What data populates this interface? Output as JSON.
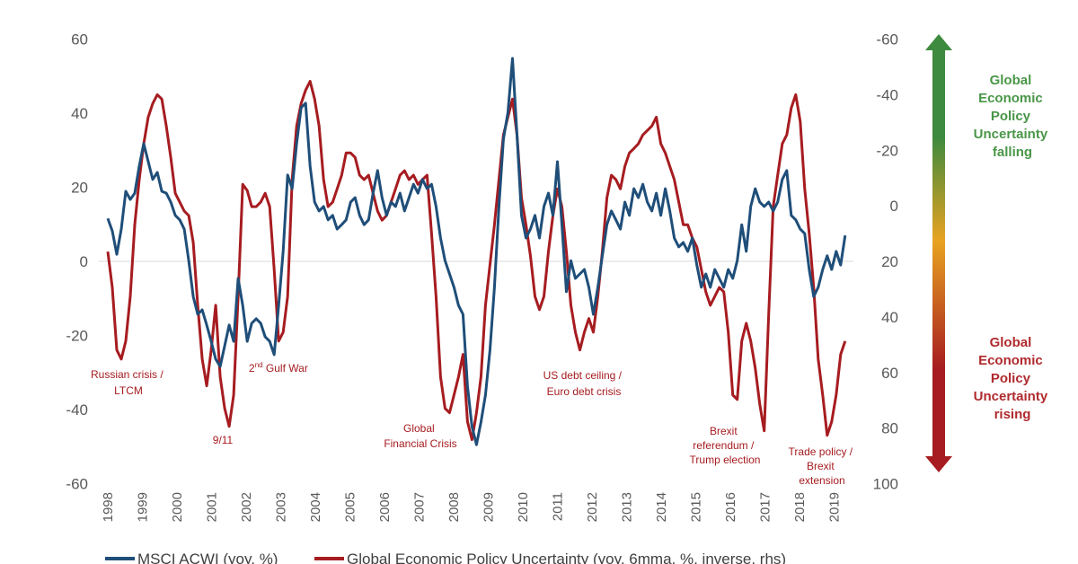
{
  "chart_data": {
    "type": "line",
    "xlim": [
      1998,
      2019.4
    ],
    "ylim_left": [
      -60,
      60
    ],
    "ylim_right": [
      -60,
      100
    ],
    "right_axis_inverted": true,
    "grid": false,
    "zero_line": true,
    "legend_position": "bottom",
    "x_ticks": [
      "1998",
      "1999",
      "2000",
      "2001",
      "2002",
      "2003",
      "2004",
      "2005",
      "2006",
      "2007",
      "2008",
      "2009",
      "2010",
      "2011",
      "2012",
      "2013",
      "2014",
      "2015",
      "2016",
      "2017",
      "2018",
      "2019"
    ],
    "y_ticks_left": [
      "60",
      "40",
      "20",
      "0",
      "-20",
      "-40",
      "-60"
    ],
    "y_ticks_right": [
      "-60",
      "-40",
      "-20",
      "0",
      "20",
      "40",
      "60",
      "80",
      "100"
    ],
    "x": [
      1998.0,
      1998.13,
      1998.26,
      1998.39,
      1998.52,
      1998.65,
      1998.78,
      1998.91,
      1999.04,
      1999.17,
      1999.3,
      1999.43,
      1999.56,
      1999.69,
      1999.82,
      1999.95,
      2000.08,
      2000.21,
      2000.34,
      2000.47,
      2000.6,
      2000.73,
      2000.86,
      2000.99,
      2001.12,
      2001.25,
      2001.38,
      2001.51,
      2001.64,
      2001.77,
      2001.9,
      2002.03,
      2002.16,
      2002.29,
      2002.42,
      2002.55,
      2002.68,
      2002.81,
      2002.94,
      2003.07,
      2003.2,
      2003.33,
      2003.46,
      2003.59,
      2003.72,
      2003.85,
      2003.98,
      2004.11,
      2004.24,
      2004.37,
      2004.5,
      2004.63,
      2004.76,
      2004.89,
      2005.02,
      2005.15,
      2005.28,
      2005.41,
      2005.54,
      2005.67,
      2005.8,
      2005.93,
      2006.06,
      2006.19,
      2006.32,
      2006.45,
      2006.58,
      2006.71,
      2006.84,
      2006.97,
      2007.1,
      2007.23,
      2007.36,
      2007.49,
      2007.62,
      2007.75,
      2007.88,
      2008.01,
      2008.14,
      2008.27,
      2008.4,
      2008.53,
      2008.66,
      2008.79,
      2008.92,
      2009.05,
      2009.18,
      2009.31,
      2009.44,
      2009.57,
      2009.7,
      2009.83,
      2009.96,
      2010.09,
      2010.22,
      2010.35,
      2010.48,
      2010.61,
      2010.74,
      2010.87,
      2011.0,
      2011.13,
      2011.26,
      2011.39,
      2011.52,
      2011.65,
      2011.78,
      2011.91,
      2012.04,
      2012.17,
      2012.3,
      2012.43,
      2012.56,
      2012.69,
      2012.82,
      2012.95,
      2013.08,
      2013.21,
      2013.34,
      2013.47,
      2013.6,
      2013.73,
      2013.86,
      2013.99,
      2014.12,
      2014.25,
      2014.38,
      2014.51,
      2014.64,
      2014.77,
      2014.9,
      2015.03,
      2015.16,
      2015.29,
      2015.42,
      2015.55,
      2015.68,
      2015.81,
      2015.94,
      2016.07,
      2016.2,
      2016.33,
      2016.46,
      2016.59,
      2016.72,
      2016.85,
      2016.98,
      2017.11,
      2017.24,
      2017.37,
      2017.5,
      2017.63,
      2017.76,
      2017.89,
      2018.02,
      2018.15,
      2018.28,
      2018.41,
      2018.54,
      2018.67,
      2018.8,
      2018.93,
      2019.06,
      2019.19,
      2019.32
    ],
    "series": [
      {
        "name": "MSCI ACWI (yoy, %)",
        "axis": "left",
        "color": "#1f4e79",
        "values": [
          11.6,
          8.2,
          1.9,
          8.7,
          18.9,
          16.7,
          18.4,
          25.7,
          31.8,
          26.9,
          22.1,
          24.0,
          18.9,
          18.4,
          16.0,
          12.4,
          11.2,
          8.7,
          0.2,
          -9.5,
          -14.3,
          -13.1,
          -17.2,
          -21.6,
          -26.4,
          -28.4,
          -22.8,
          -17.2,
          -21.6,
          -4.6,
          -11.9,
          -21.6,
          -16.7,
          -15.5,
          -16.7,
          -20.4,
          -21.6,
          -25.2,
          -11.9,
          2.7,
          23.3,
          19.6,
          31.8,
          41.5,
          42.7,
          25.7,
          16.0,
          13.6,
          14.8,
          11.2,
          12.4,
          8.7,
          9.9,
          11.2,
          16.0,
          17.2,
          12.4,
          9.9,
          11.2,
          18.4,
          24.5,
          17.2,
          12.4,
          16.0,
          14.8,
          18.4,
          13.6,
          17.2,
          20.8,
          18.4,
          22.1,
          19.6,
          20.8,
          14.8,
          6.3,
          0.2,
          -3.4,
          -7.0,
          -11.9,
          -14.3,
          -33.7,
          -44.6,
          -49.5,
          -43.4,
          -36.1,
          -24.0,
          -7.0,
          14.8,
          33.0,
          40.2,
          54.8,
          34.2,
          12.4,
          6.3,
          8.7,
          12.4,
          6.3,
          14.8,
          18.4,
          12.4,
          26.9,
          9.9,
          -8.2,
          0.2,
          -4.6,
          -3.4,
          -2.2,
          -7.0,
          -14.3,
          -7.0,
          1.5,
          9.9,
          13.6,
          11.2,
          8.7,
          16.0,
          12.4,
          19.6,
          17.2,
          20.8,
          16.0,
          13.6,
          18.4,
          12.4,
          19.6,
          13.6,
          6.3,
          3.9,
          5.1,
          2.7,
          6.3,
          -1.0,
          -7.0,
          -3.4,
          -7.0,
          -2.2,
          -4.6,
          -7.0,
          -2.2,
          -4.6,
          0.2,
          9.9,
          2.7,
          14.8,
          19.6,
          16.0,
          14.8,
          16.0,
          13.6,
          16.0,
          22.1,
          24.5,
          12.4,
          11.2,
          8.7,
          7.5,
          -2.2,
          -9.5,
          -7.0,
          -2.2,
          1.5,
          -2.2,
          2.7,
          -1.0,
          7.0
        ]
      },
      {
        "name": "Global Economic Policy Uncertainty (yoy, 6mma, %, inverse, rhs)",
        "axis": "right",
        "color": "#a61c20",
        "values": [
          16.5,
          29.4,
          51.9,
          55.2,
          48.7,
          32.6,
          6.8,
          -9.4,
          -22.3,
          -31.9,
          -36.8,
          -40.0,
          -38.4,
          -28.7,
          -17.4,
          -4.5,
          -1.3,
          1.9,
          3.5,
          13.2,
          35.8,
          55.2,
          64.8,
          51.9,
          35.8,
          61.6,
          72.9,
          79.4,
          68.1,
          32.6,
          -7.7,
          -5.5,
          0.3,
          0.3,
          -1.3,
          -4.5,
          0.3,
          22.9,
          48.7,
          45.5,
          32.6,
          -9.4,
          -28.7,
          -36.8,
          -41.6,
          -44.8,
          -38.4,
          -28.7,
          -9.4,
          0.3,
          -1.3,
          -6.1,
          -11.0,
          -19.0,
          -19.0,
          -17.4,
          -11.0,
          -9.4,
          -11.0,
          -4.5,
          1.9,
          5.2,
          3.5,
          -1.3,
          -6.1,
          -11.0,
          -12.6,
          -9.4,
          -11.0,
          -7.7,
          -9.4,
          -11.0,
          10.0,
          32.6,
          61.6,
          72.9,
          74.5,
          68.1,
          61.6,
          53.5,
          77.7,
          84.2,
          74.5,
          61.6,
          35.8,
          21.3,
          6.8,
          -9.4,
          -25.5,
          -31.9,
          -38.4,
          -25.5,
          -2.9,
          6.8,
          18.1,
          32.6,
          37.4,
          32.6,
          16.5,
          3.5,
          -6.1,
          0.3,
          16.5,
          35.8,
          45.5,
          51.9,
          45.5,
          40.6,
          45.5,
          32.6,
          16.5,
          -2.9,
          -11.0,
          -9.4,
          -6.1,
          -14.2,
          -19.0,
          -20.6,
          -22.3,
          -25.5,
          -27.1,
          -28.7,
          -31.9,
          -22.3,
          -19.0,
          -14.2,
          -9.4,
          -1.3,
          6.8,
          6.8,
          11.6,
          14.8,
          22.9,
          31.0,
          35.8,
          32.6,
          29.4,
          31.0,
          45.5,
          68.1,
          69.7,
          48.7,
          42.3,
          48.7,
          58.4,
          71.3,
          81.0,
          39.0,
          0.3,
          -11.0,
          -22.3,
          -25.5,
          -35.2,
          -40.0,
          -30.3,
          -6.1,
          10.0,
          29.4,
          55.2,
          68.1,
          82.6,
          77.7,
          68.1,
          53.5,
          48.7
        ]
      }
    ],
    "annotations": [
      {
        "lines": [
          "Russian crisis /",
          "LTCM"
        ]
      },
      {
        "lines": [
          "9/11"
        ]
      },
      {
        "lines": [
          "2",
          "nd",
          " Gulf War"
        ]
      },
      {
        "lines": [
          "Global",
          "Financial Crisis"
        ]
      },
      {
        "lines": [
          "US debt ceiling /",
          "Euro debt crisis"
        ]
      },
      {
        "lines": [
          "Brexit",
          "referendum /",
          "Trump election"
        ]
      },
      {
        "lines": [
          "Trade policy /",
          "Brexit",
          "extension"
        ]
      }
    ],
    "side_labels": {
      "top": {
        "lines": [
          "Global",
          "Economic",
          "Policy",
          "Uncertainty",
          "falling"
        ],
        "color": "#4a9648"
      },
      "bottom": {
        "lines": [
          "Global",
          "Economic",
          "Policy",
          "Uncertainty",
          "rising"
        ],
        "color": "#b02a2e"
      }
    },
    "arrow_colors": [
      "#3e8a3e",
      "#e8a321",
      "#a61c20"
    ]
  }
}
